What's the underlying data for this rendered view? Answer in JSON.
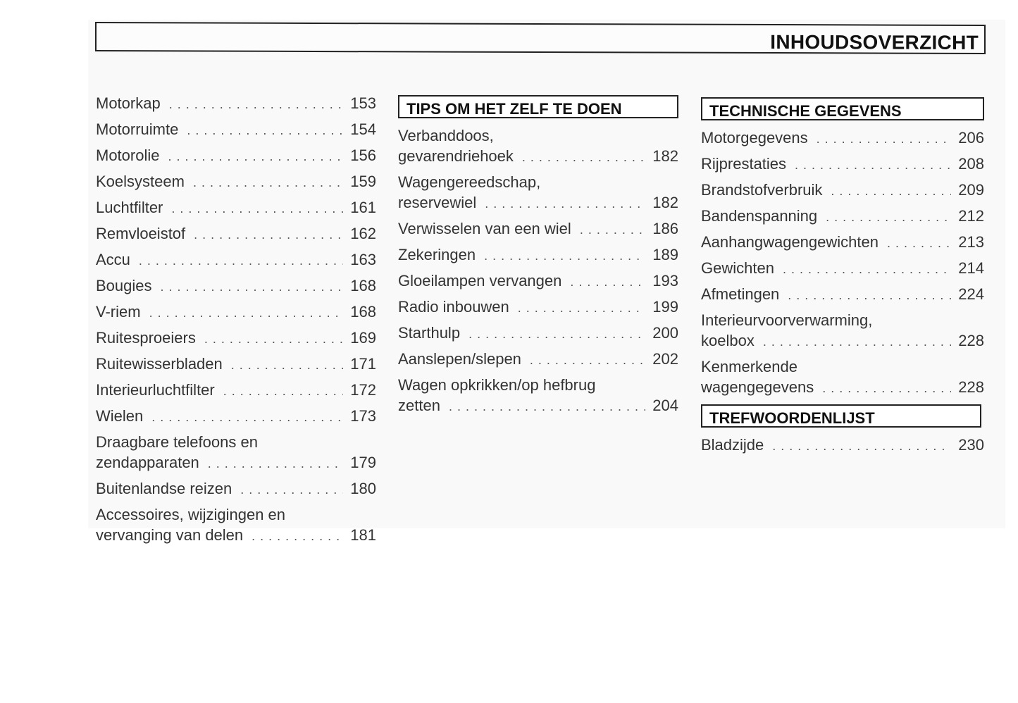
{
  "header": {
    "title": "INHOUDSOVERZICHT"
  },
  "columns": [
    {
      "sections": [
        {
          "heading": "",
          "entries": [
            {
              "lines": [
                "Motorkap"
              ],
              "page": "153"
            },
            {
              "lines": [
                "Motorruimte"
              ],
              "page": "154"
            },
            {
              "lines": [
                "Motorolie"
              ],
              "page": "156"
            },
            {
              "lines": [
                "Koelsysteem"
              ],
              "page": "159"
            },
            {
              "lines": [
                "Luchtfilter"
              ],
              "page": "161"
            },
            {
              "lines": [
                "Remvloeistof"
              ],
              "page": "162"
            },
            {
              "lines": [
                "Accu"
              ],
              "page": "163"
            },
            {
              "lines": [
                "Bougies"
              ],
              "page": "168"
            },
            {
              "lines": [
                "V-riem"
              ],
              "page": "168"
            },
            {
              "lines": [
                "Ruitesproeiers"
              ],
              "page": "169"
            },
            {
              "lines": [
                "Ruitewisserbladen"
              ],
              "page": "171"
            },
            {
              "lines": [
                "Interieurluchtfilter"
              ],
              "page": "172"
            },
            {
              "lines": [
                "Wielen"
              ],
              "page": "173"
            },
            {
              "lines": [
                "Draagbare telefoons en",
                "zendapparaten"
              ],
              "page": "179"
            },
            {
              "lines": [
                "Buitenlandse reizen"
              ],
              "page": "180"
            },
            {
              "lines": [
                "Accessoires, wijzigingen en",
                "vervanging van delen"
              ],
              "page": "181"
            }
          ]
        }
      ]
    },
    {
      "sections": [
        {
          "heading": "TIPS OM HET ZELF TE DOEN",
          "entries": [
            {
              "lines": [
                "Verbanddoos,",
                "gevarendriehoek"
              ],
              "page": "182"
            },
            {
              "lines": [
                "Wagengereedschap,",
                "reservewiel"
              ],
              "page": "182"
            },
            {
              "lines": [
                "Verwisselen van een wiel"
              ],
              "page": "186"
            },
            {
              "lines": [
                "Zekeringen"
              ],
              "page": "189"
            },
            {
              "lines": [
                "Gloeilampen vervangen"
              ],
              "page": "193"
            },
            {
              "lines": [
                "Radio inbouwen"
              ],
              "page": "199"
            },
            {
              "lines": [
                "Starthulp"
              ],
              "page": "200"
            },
            {
              "lines": [
                "Aanslepen/slepen"
              ],
              "page": "202"
            },
            {
              "lines": [
                "Wagen opkrikken/op hefbrug",
                "zetten"
              ],
              "page": "204"
            }
          ]
        }
      ]
    },
    {
      "sections": [
        {
          "heading": "TECHNISCHE GEGEVENS",
          "entries": [
            {
              "lines": [
                "Motorgegevens"
              ],
              "page": "206"
            },
            {
              "lines": [
                "Rijprestaties"
              ],
              "page": "208"
            },
            {
              "lines": [
                "Brandstofverbruik"
              ],
              "page": "209"
            },
            {
              "lines": [
                "Bandenspanning"
              ],
              "page": "212"
            },
            {
              "lines": [
                "Aanhangwagengewichten"
              ],
              "page": "213"
            },
            {
              "lines": [
                "Gewichten"
              ],
              "page": "214"
            },
            {
              "lines": [
                "Afmetingen"
              ],
              "page": "224"
            },
            {
              "lines": [
                "Interieurvoorverwarming,",
                "koelbox"
              ],
              "page": "228"
            },
            {
              "lines": [
                "Kenmerkende",
                "wagengegevens"
              ],
              "page": "228"
            }
          ]
        },
        {
          "heading": "TREFWOORDENLIJST",
          "entries": [
            {
              "lines": [
                "Bladzijde"
              ],
              "page": "230"
            }
          ]
        }
      ]
    }
  ]
}
